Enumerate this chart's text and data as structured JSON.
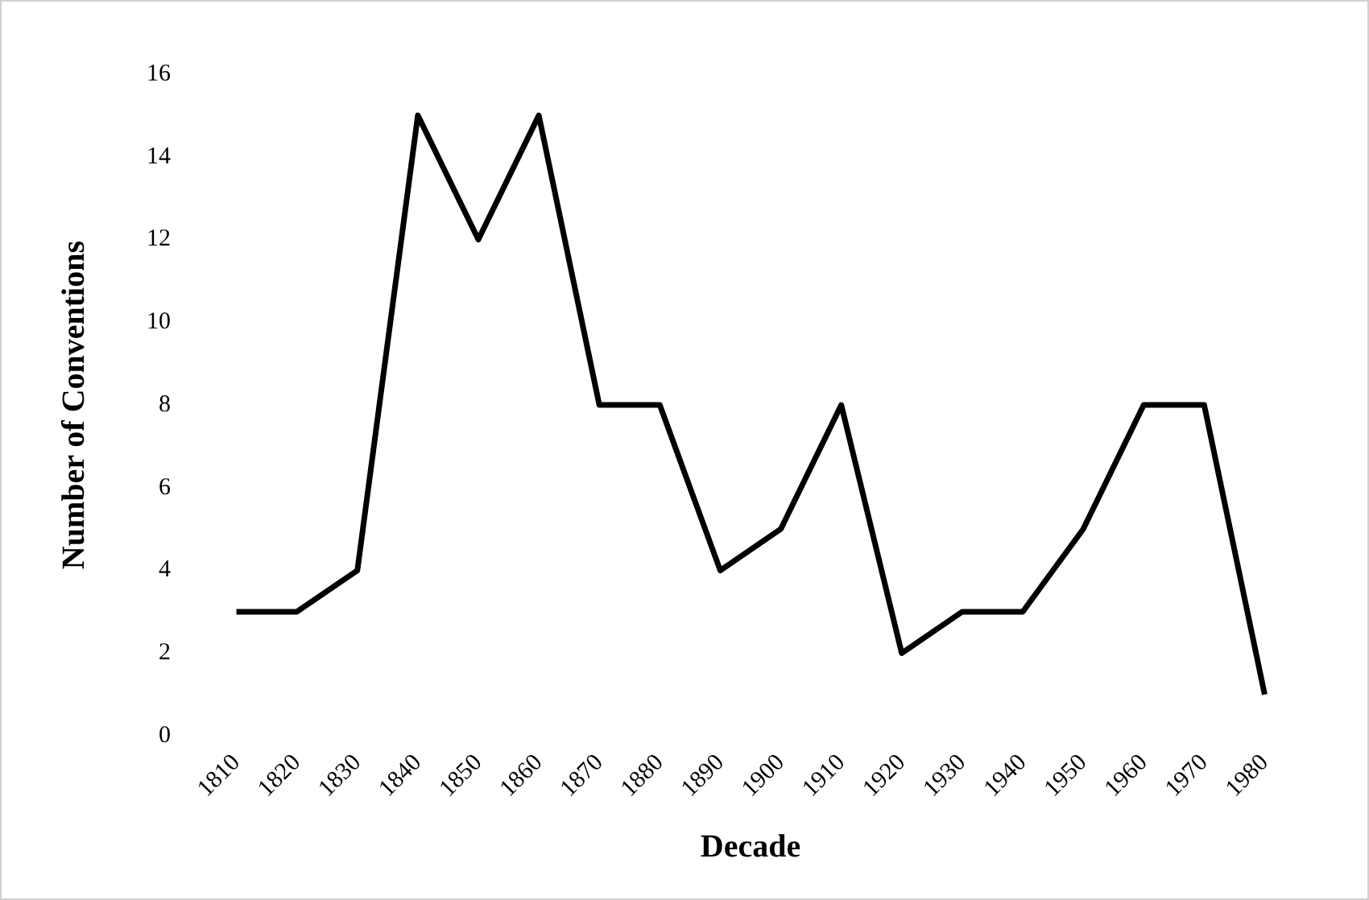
{
  "chart_data": {
    "type": "line",
    "xlabel": "Decade",
    "ylabel": "Number of Conventions",
    "categories": [
      "1810",
      "1820",
      "1830",
      "1840",
      "1850",
      "1860",
      "1870",
      "1880",
      "1890",
      "1900",
      "1910",
      "1920",
      "1930",
      "1940",
      "1950",
      "1960",
      "1970",
      "1980"
    ],
    "series": [
      {
        "color": "#000000",
        "values": [
          3,
          3,
          4,
          15,
          12,
          15,
          8,
          8,
          4,
          5,
          8,
          2,
          3,
          3,
          5,
          8,
          8,
          1
        ]
      }
    ],
    "ylim": [
      0,
      16
    ],
    "yticks": [
      0,
      2,
      4,
      6,
      8,
      10,
      12,
      14,
      16
    ],
    "grid": false,
    "legend": false,
    "marker": "none",
    "line_style": "solid"
  }
}
